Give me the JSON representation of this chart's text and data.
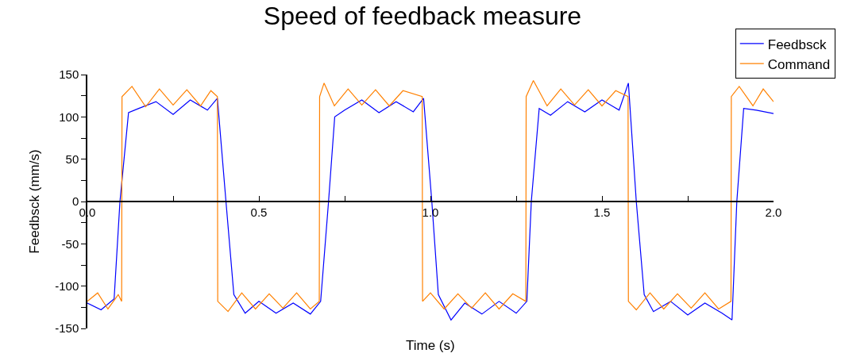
{
  "chart_data": {
    "type": "line",
    "title": "Speed of feedback measure",
    "xlabel": "Time (s)",
    "ylabel": "Feedbsck (mm/s)",
    "xlim": [
      0,
      2.0
    ],
    "ylim": [
      -150,
      150
    ],
    "xticks": [
      {
        "value": 0,
        "label": "0.0"
      },
      {
        "value": 0.25,
        "label": null
      },
      {
        "value": 0.5,
        "label": "0.5"
      },
      {
        "value": 0.75,
        "label": null
      },
      {
        "value": 1.0,
        "label": "1.0"
      },
      {
        "value": 1.25,
        "label": null
      },
      {
        "value": 1.5,
        "label": "1.5"
      },
      {
        "value": 1.75,
        "label": null
      },
      {
        "value": 2.0,
        "label": "2.0"
      }
    ],
    "yticks": [
      -150,
      {
        "value": -125,
        "label": null
      },
      -100,
      {
        "value": -75,
        "label": null
      },
      -50,
      {
        "value": -25,
        "label": null
      },
      0,
      {
        "value": 25,
        "label": null
      },
      50,
      {
        "value": 75,
        "label": null
      },
      100,
      {
        "value": 125,
        "label": null
      },
      150
    ],
    "legend": "top right",
    "marker": "none",
    "line_style": "solid",
    "series": [
      {
        "name": "Feedbsck",
        "color": "#0000ff",
        "x": [
          0,
          0.04,
          0.078,
          0.095,
          0.12,
          0.15,
          0.2,
          0.25,
          0.3,
          0.35,
          0.379,
          0.404,
          0.427,
          0.46,
          0.5,
          0.55,
          0.6,
          0.65,
          0.68,
          0.703,
          0.721,
          0.75,
          0.8,
          0.85,
          0.9,
          0.95,
          0.98,
          1.004,
          1.023,
          1.06,
          1.1,
          1.15,
          1.2,
          1.25,
          1.281,
          1.294,
          1.317,
          1.35,
          1.4,
          1.45,
          1.5,
          1.55,
          1.577,
          1.6,
          1.623,
          1.65,
          1.7,
          1.75,
          1.8,
          1.85,
          1.879,
          1.893,
          1.913,
          1.95,
          2.0
        ],
        "values": [
          -120,
          -128,
          -115,
          0,
          105,
          110,
          118,
          103,
          120,
          108,
          122,
          0,
          -110,
          -132,
          -118,
          -132,
          -120,
          -133,
          -118,
          0,
          100,
          108,
          120,
          105,
          118,
          106,
          122,
          0,
          -110,
          -140,
          -120,
          -133,
          -118,
          -132,
          -118,
          0,
          110,
          102,
          118,
          106,
          120,
          108,
          140,
          0,
          -110,
          -130,
          -118,
          -134,
          -120,
          -132,
          -140,
          0,
          110,
          108,
          104
        ]
      },
      {
        "name": "Command",
        "color": "#ff8000",
        "x": [
          0,
          0.03,
          0.06,
          0.09,
          0.1,
          0.101,
          0.13,
          0.17,
          0.21,
          0.25,
          0.29,
          0.33,
          0.36,
          0.379,
          0.38,
          0.41,
          0.45,
          0.49,
          0.53,
          0.57,
          0.61,
          0.65,
          0.676,
          0.677,
          0.69,
          0.72,
          0.76,
          0.8,
          0.84,
          0.88,
          0.92,
          0.976,
          0.977,
          1.0,
          1.04,
          1.08,
          1.12,
          1.16,
          1.2,
          1.24,
          1.278,
          1.279,
          1.3,
          1.34,
          1.38,
          1.42,
          1.46,
          1.5,
          1.54,
          1.576,
          1.577,
          1.6,
          1.64,
          1.68,
          1.72,
          1.76,
          1.8,
          1.84,
          1.876,
          1.877,
          1.9,
          1.94,
          1.97,
          2.0
        ],
        "values": [
          -118,
          -108,
          -127,
          -110,
          -118,
          124,
          136,
          112,
          133,
          114,
          132,
          113,
          131,
          124,
          -118,
          -130,
          -108,
          -127,
          -109,
          -126,
          -108,
          -127,
          -118,
          124,
          140,
          113,
          133,
          114,
          132,
          113,
          131,
          124,
          -118,
          -108,
          -127,
          -109,
          -126,
          -108,
          -127,
          -109,
          -118,
          124,
          143,
          113,
          133,
          114,
          132,
          113,
          131,
          124,
          -118,
          -128,
          -108,
          -127,
          -109,
          -126,
          -108,
          -127,
          -118,
          124,
          136,
          113,
          133,
          118
        ]
      }
    ]
  }
}
